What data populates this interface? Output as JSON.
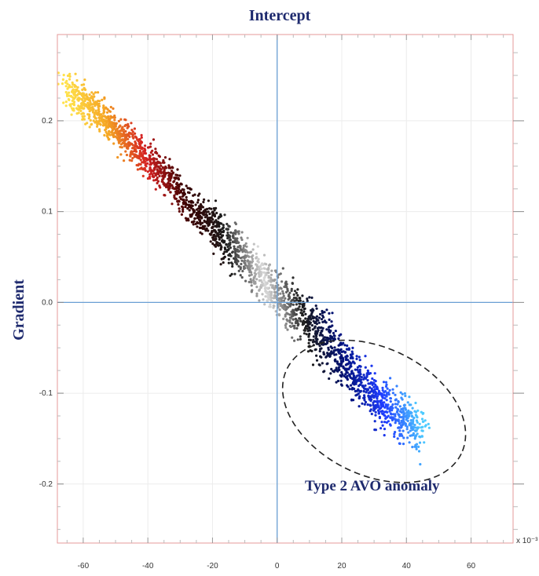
{
  "chart_data": {
    "type": "scatter",
    "title": "",
    "xlabel": "Intercept",
    "ylabel": "Gradient",
    "x_scale_label": "x 10⁻³",
    "xlim": [
      -68,
      73
    ],
    "ylim": [
      -0.265,
      0.295
    ],
    "xticks": [
      -60,
      -40,
      -20,
      0,
      20,
      40,
      60
    ],
    "yticks": [
      0.2,
      0.1,
      0.0,
      -0.1,
      -0.2
    ],
    "ytick_labels": [
      "0.2",
      "0.1",
      "0.0",
      "-0.1",
      "-0.2"
    ],
    "grid": true,
    "crosshair": {
      "x": 0,
      "y": 0
    },
    "color_scale": [
      "#ffe14a",
      "#f5a623",
      "#d42020",
      "#3a0000",
      "#1a1a1a",
      "#d8d8d8",
      "#1a1a1a",
      "#00117a",
      "#1f3cff",
      "#4ecbff"
    ],
    "cloud_trend": [
      {
        "x": -65,
        "y": 0.235
      },
      {
        "x": -50,
        "y": 0.19
      },
      {
        "x": -35,
        "y": 0.14
      },
      {
        "x": -25,
        "y": 0.1
      },
      {
        "x": -15,
        "y": 0.065
      },
      {
        "x": 0,
        "y": 0.01
      },
      {
        "x": 15,
        "y": -0.04
      },
      {
        "x": 25,
        "y": -0.085
      },
      {
        "x": 35,
        "y": -0.12
      },
      {
        "x": 45,
        "y": -0.14
      }
    ],
    "annotations": [
      {
        "text": "Type 2 AVO anomaly",
        "ellipse_center": {
          "x": 30,
          "y": -0.12
        },
        "ellipse_radius": {
          "x": 30,
          "y": 0.07
        }
      }
    ]
  }
}
